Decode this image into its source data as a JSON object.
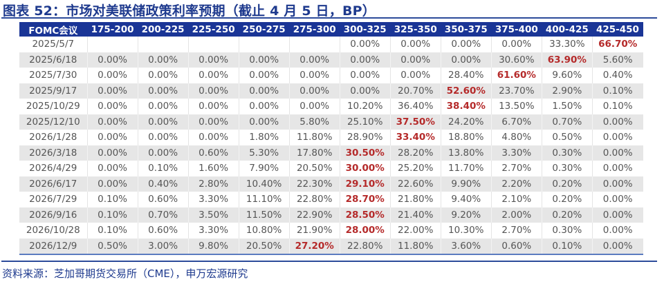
{
  "title": "图表 52：市场对美联储政策利率预期（截止 4 月 5 日，BP）",
  "table": {
    "headers": [
      "FOMC会议",
      "175-200",
      "200-225",
      "225-250",
      "250-275",
      "275-300",
      "300-325",
      "325-350",
      "350-375",
      "375-400",
      "400-425",
      "425-450"
    ],
    "rows": [
      {
        "date": "2025/5/7",
        "values": [
          "",
          "",
          "",
          "",
          "",
          "0.00%",
          "0.00%",
          "0.00%",
          "0.00%",
          "33.30%",
          "66.70%"
        ],
        "highlight": 10
      },
      {
        "date": "2025/6/18",
        "values": [
          "0.00%",
          "0.00%",
          "0.00%",
          "0.00%",
          "0.00%",
          "0.00%",
          "0.00%",
          "0.00%",
          "30.60%",
          "63.90%",
          "5.60%"
        ],
        "highlight": 9
      },
      {
        "date": "2025/7/30",
        "values": [
          "0.00%",
          "0.00%",
          "0.00%",
          "0.00%",
          "0.00%",
          "0.00%",
          "0.00%",
          "28.40%",
          "61.60%",
          "9.60%",
          "0.40%"
        ],
        "highlight": 8
      },
      {
        "date": "2025/9/17",
        "values": [
          "0.00%",
          "0.00%",
          "0.00%",
          "0.00%",
          "0.00%",
          "0.00%",
          "20.70%",
          "52.60%",
          "23.70%",
          "2.90%",
          "0.10%"
        ],
        "highlight": 7
      },
      {
        "date": "2025/10/29",
        "values": [
          "0.00%",
          "0.00%",
          "0.00%",
          "0.00%",
          "0.00%",
          "10.20%",
          "36.40%",
          "38.40%",
          "13.50%",
          "1.50%",
          "0.10%"
        ],
        "highlight": 7
      },
      {
        "date": "2025/12/10",
        "values": [
          "0.00%",
          "0.00%",
          "0.00%",
          "0.00%",
          "5.80%",
          "25.10%",
          "37.50%",
          "24.20%",
          "6.70%",
          "0.70%",
          "0.00%"
        ],
        "highlight": 6
      },
      {
        "date": "2026/1/28",
        "values": [
          "0.00%",
          "0.00%",
          "0.00%",
          "1.80%",
          "11.80%",
          "28.90%",
          "33.40%",
          "18.80%",
          "4.80%",
          "0.50%",
          "0.00%"
        ],
        "highlight": 6
      },
      {
        "date": "2026/3/18",
        "values": [
          "0.00%",
          "0.00%",
          "0.60%",
          "5.30%",
          "17.80%",
          "30.50%",
          "28.20%",
          "13.80%",
          "3.30%",
          "0.30%",
          "0.00%"
        ],
        "highlight": 5
      },
      {
        "date": "2026/4/29",
        "values": [
          "0.00%",
          "0.10%",
          "1.60%",
          "7.90%",
          "20.50%",
          "30.00%",
          "25.20%",
          "11.70%",
          "2.70%",
          "0.30%",
          "0.00%"
        ],
        "highlight": 5
      },
      {
        "date": "2026/6/17",
        "values": [
          "0.00%",
          "0.40%",
          "2.80%",
          "10.40%",
          "22.30%",
          "29.10%",
          "22.60%",
          "9.90%",
          "2.20%",
          "0.20%",
          "0.00%"
        ],
        "highlight": 5
      },
      {
        "date": "2026/7/29",
        "values": [
          "0.10%",
          "0.60%",
          "3.30%",
          "11.10%",
          "22.80%",
          "28.70%",
          "21.80%",
          "9.40%",
          "2.10%",
          "0.20%",
          "0.00%"
        ],
        "highlight": 5
      },
      {
        "date": "2026/9/16",
        "values": [
          "0.10%",
          "0.70%",
          "3.50%",
          "11.50%",
          "22.90%",
          "28.50%",
          "21.40%",
          "9.20%",
          "2.00%",
          "0.20%",
          "0.00%"
        ],
        "highlight": 5
      },
      {
        "date": "2026/10/28",
        "values": [
          "0.10%",
          "0.60%",
          "3.30%",
          "10.80%",
          "21.90%",
          "28.00%",
          "22.00%",
          "10.30%",
          "2.70%",
          "0.30%",
          "0.00%"
        ],
        "highlight": 5
      },
      {
        "date": "2026/12/9",
        "values": [
          "0.50%",
          "3.00%",
          "9.80%",
          "20.50%",
          "27.20%",
          "22.80%",
          "11.80%",
          "3.60%",
          "0.60%",
          "0.10%",
          "0.00%"
        ],
        "highlight": 4
      }
    ]
  },
  "source": "资料来源：芝加哥期货交易所（CME），申万宏源研究",
  "colors": {
    "title": "#1e3a8e",
    "header_bg": "#1a3596",
    "highlight": "#b52a2a",
    "stripe": "#e6e6e6"
  }
}
